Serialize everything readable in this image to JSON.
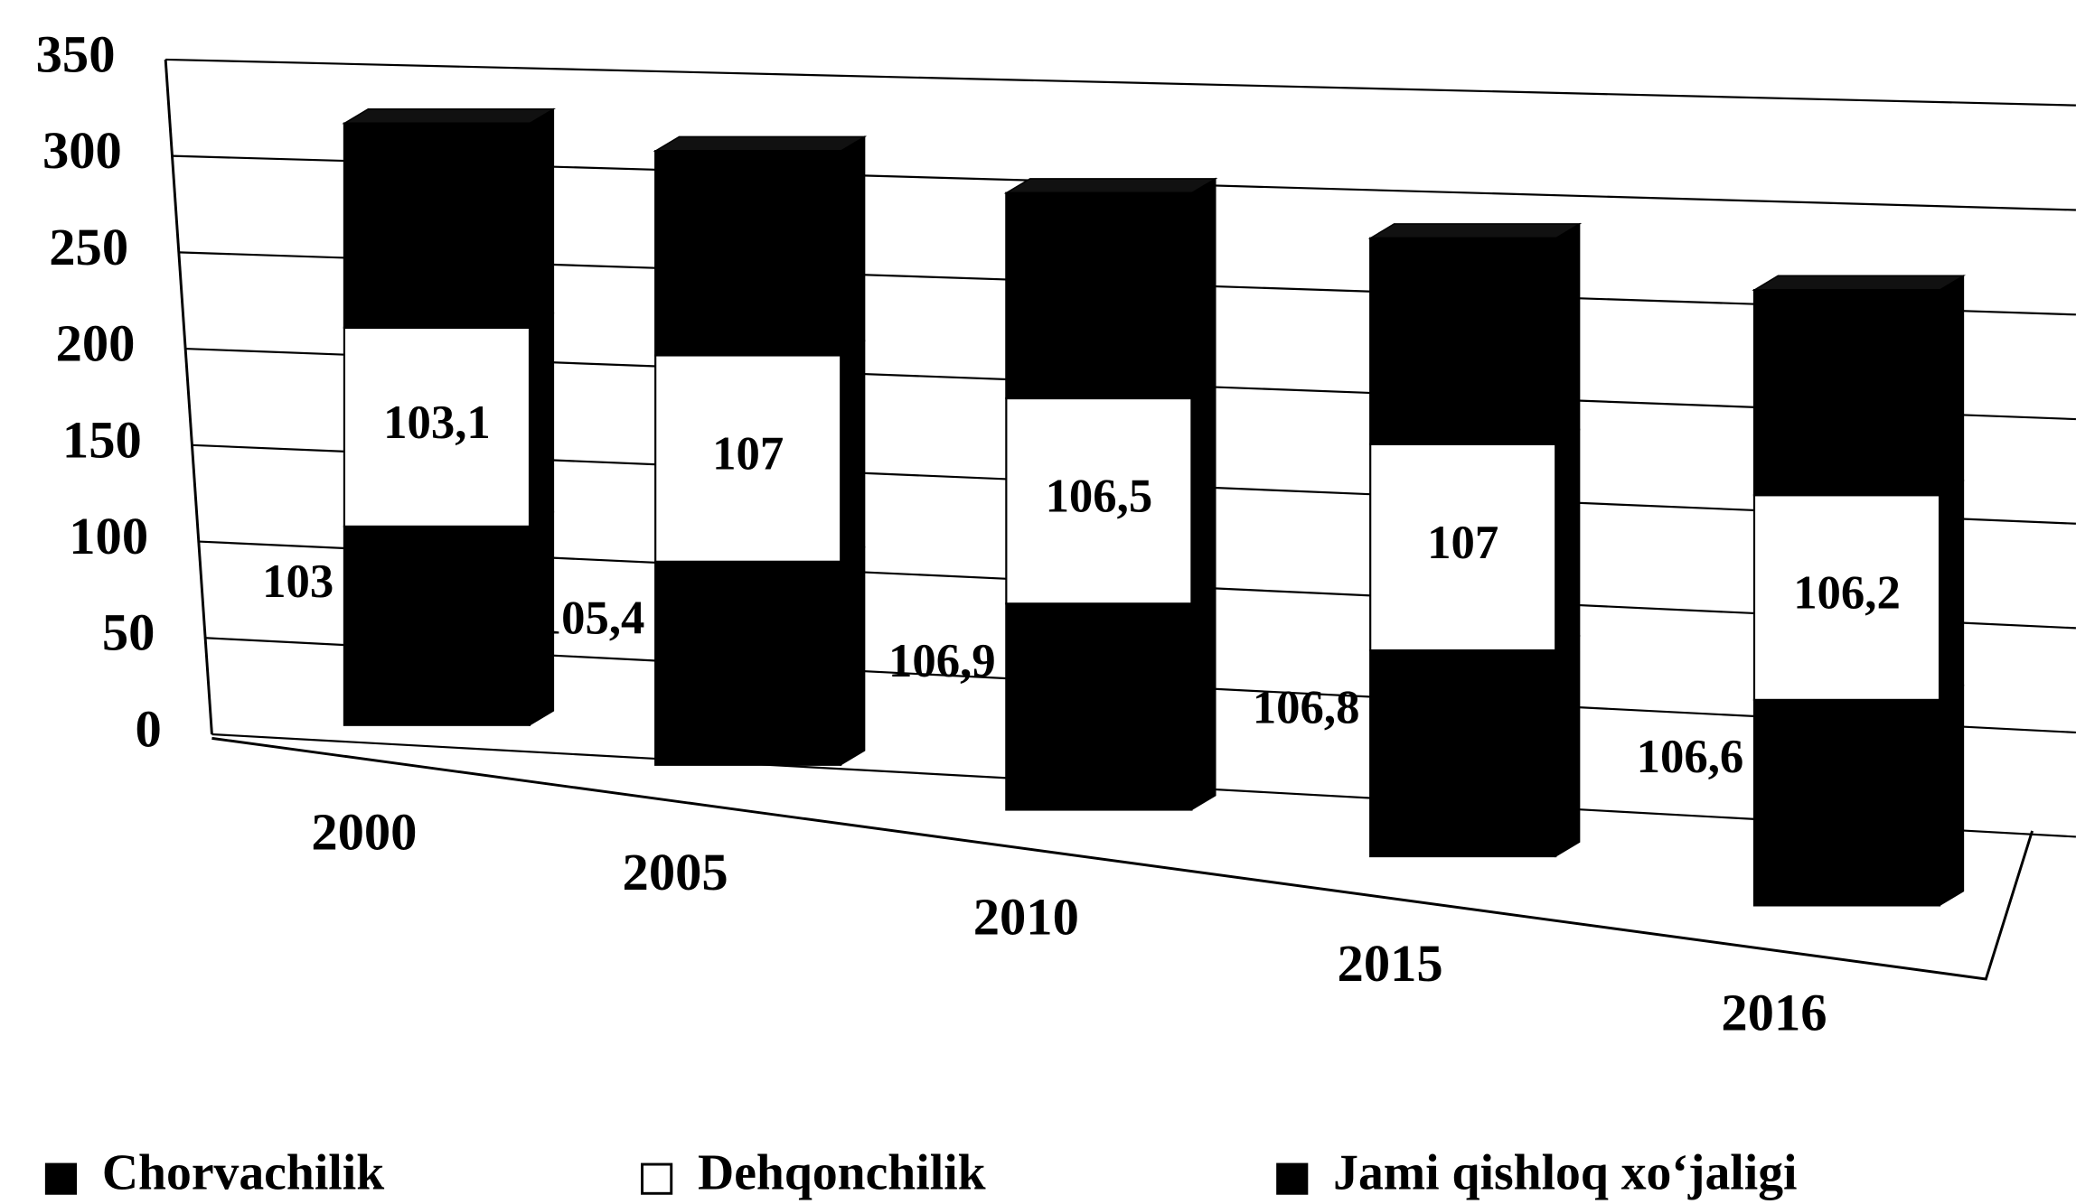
{
  "chart_data": {
    "type": "bar",
    "stacked": true,
    "categories": [
      "2000",
      "2005",
      "2010",
      "2015",
      "2016"
    ],
    "series": [
      {
        "name": "Chorvachilik",
        "color": "#000000",
        "values": [
          103,
          105.4,
          106.9,
          106.8,
          106.6
        ],
        "value_labels": [
          "103",
          "105,4",
          "106,9",
          "106,8",
          "106,6"
        ]
      },
      {
        "name": "Dehqonchilik",
        "color": "#ffffff",
        "values": [
          103.1,
          107,
          106.5,
          107,
          106.2
        ],
        "value_labels": [
          "103,1",
          "107",
          "106,5",
          "107",
          "106,2"
        ]
      },
      {
        "name": "Jami qishloq xo‘jaligi",
        "color": "#000000",
        "values": [
          106,
          106,
          106.5,
          106.8,
          106.4
        ]
      }
    ],
    "ylim": [
      0,
      350
    ],
    "yticks": [
      0,
      50,
      100,
      150,
      200,
      250,
      300,
      350
    ],
    "grid": true
  }
}
